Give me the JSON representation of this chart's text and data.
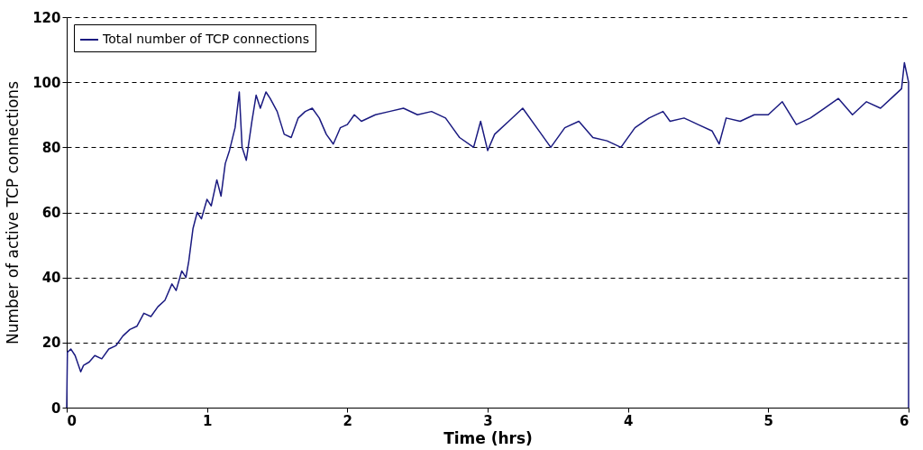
{
  "chart_data": {
    "type": "line",
    "xlabel": "Time (hrs)",
    "ylabel": "Number of active TCP connections",
    "xlim": [
      0,
      6
    ],
    "xticks": [
      0,
      1,
      2,
      3,
      4,
      5,
      6
    ],
    "ylim": [
      0,
      120
    ],
    "yticks": [
      0,
      20,
      40,
      60,
      80,
      100,
      120
    ],
    "grid": "y",
    "legend": "top left",
    "line_style": "solid",
    "series": [
      {
        "name": "Total number of TCP connections",
        "color": "#1a1a80",
        "x": [
          0,
          0.005,
          0.03,
          0.06,
          0.1,
          0.12,
          0.16,
          0.2,
          0.25,
          0.3,
          0.35,
          0.4,
          0.45,
          0.5,
          0.55,
          0.6,
          0.65,
          0.7,
          0.75,
          0.78,
          0.82,
          0.85,
          0.87,
          0.9,
          0.93,
          0.96,
          1.0,
          1.03,
          1.07,
          1.1,
          1.13,
          1.16,
          1.2,
          1.23,
          1.25,
          1.28,
          1.32,
          1.35,
          1.38,
          1.42,
          1.45,
          1.5,
          1.55,
          1.6,
          1.65,
          1.7,
          1.75,
          1.8,
          1.85,
          1.9,
          1.95,
          2.0,
          2.05,
          2.1,
          2.2,
          2.3,
          2.4,
          2.5,
          2.6,
          2.7,
          2.8,
          2.9,
          2.95,
          3.0,
          3.05,
          3.15,
          3.25,
          3.35,
          3.45,
          3.55,
          3.65,
          3.75,
          3.85,
          3.95,
          4.05,
          4.15,
          4.25,
          4.3,
          4.4,
          4.5,
          4.6,
          4.65,
          4.7,
          4.8,
          4.9,
          5.0,
          5.1,
          5.2,
          5.3,
          5.4,
          5.5,
          5.6,
          5.7,
          5.8,
          5.9,
          5.95,
          5.97,
          5.99,
          6.0,
          6
        ],
        "values": [
          0,
          17,
          18,
          16,
          11,
          13,
          14,
          16,
          15,
          18,
          19,
          22,
          24,
          25,
          29,
          28,
          31,
          33,
          38,
          36,
          42,
          40,
          45,
          55,
          60,
          58,
          64,
          62,
          70,
          65,
          75,
          79,
          86,
          97,
          80,
          76,
          88,
          96,
          92,
          97,
          95,
          91,
          84,
          83,
          89,
          91,
          92,
          89,
          84,
          81,
          86,
          87,
          90,
          88,
          90,
          91,
          92,
          90,
          91,
          89,
          83,
          80,
          88,
          79,
          84,
          88,
          92,
          86,
          80,
          86,
          88,
          83,
          82,
          80,
          86,
          89,
          91,
          88,
          89,
          87,
          85,
          81,
          89,
          88,
          90,
          90,
          94,
          87,
          89,
          92,
          95,
          90,
          94,
          92,
          96,
          98,
          106,
          102,
          100,
          0
        ]
      }
    ]
  }
}
